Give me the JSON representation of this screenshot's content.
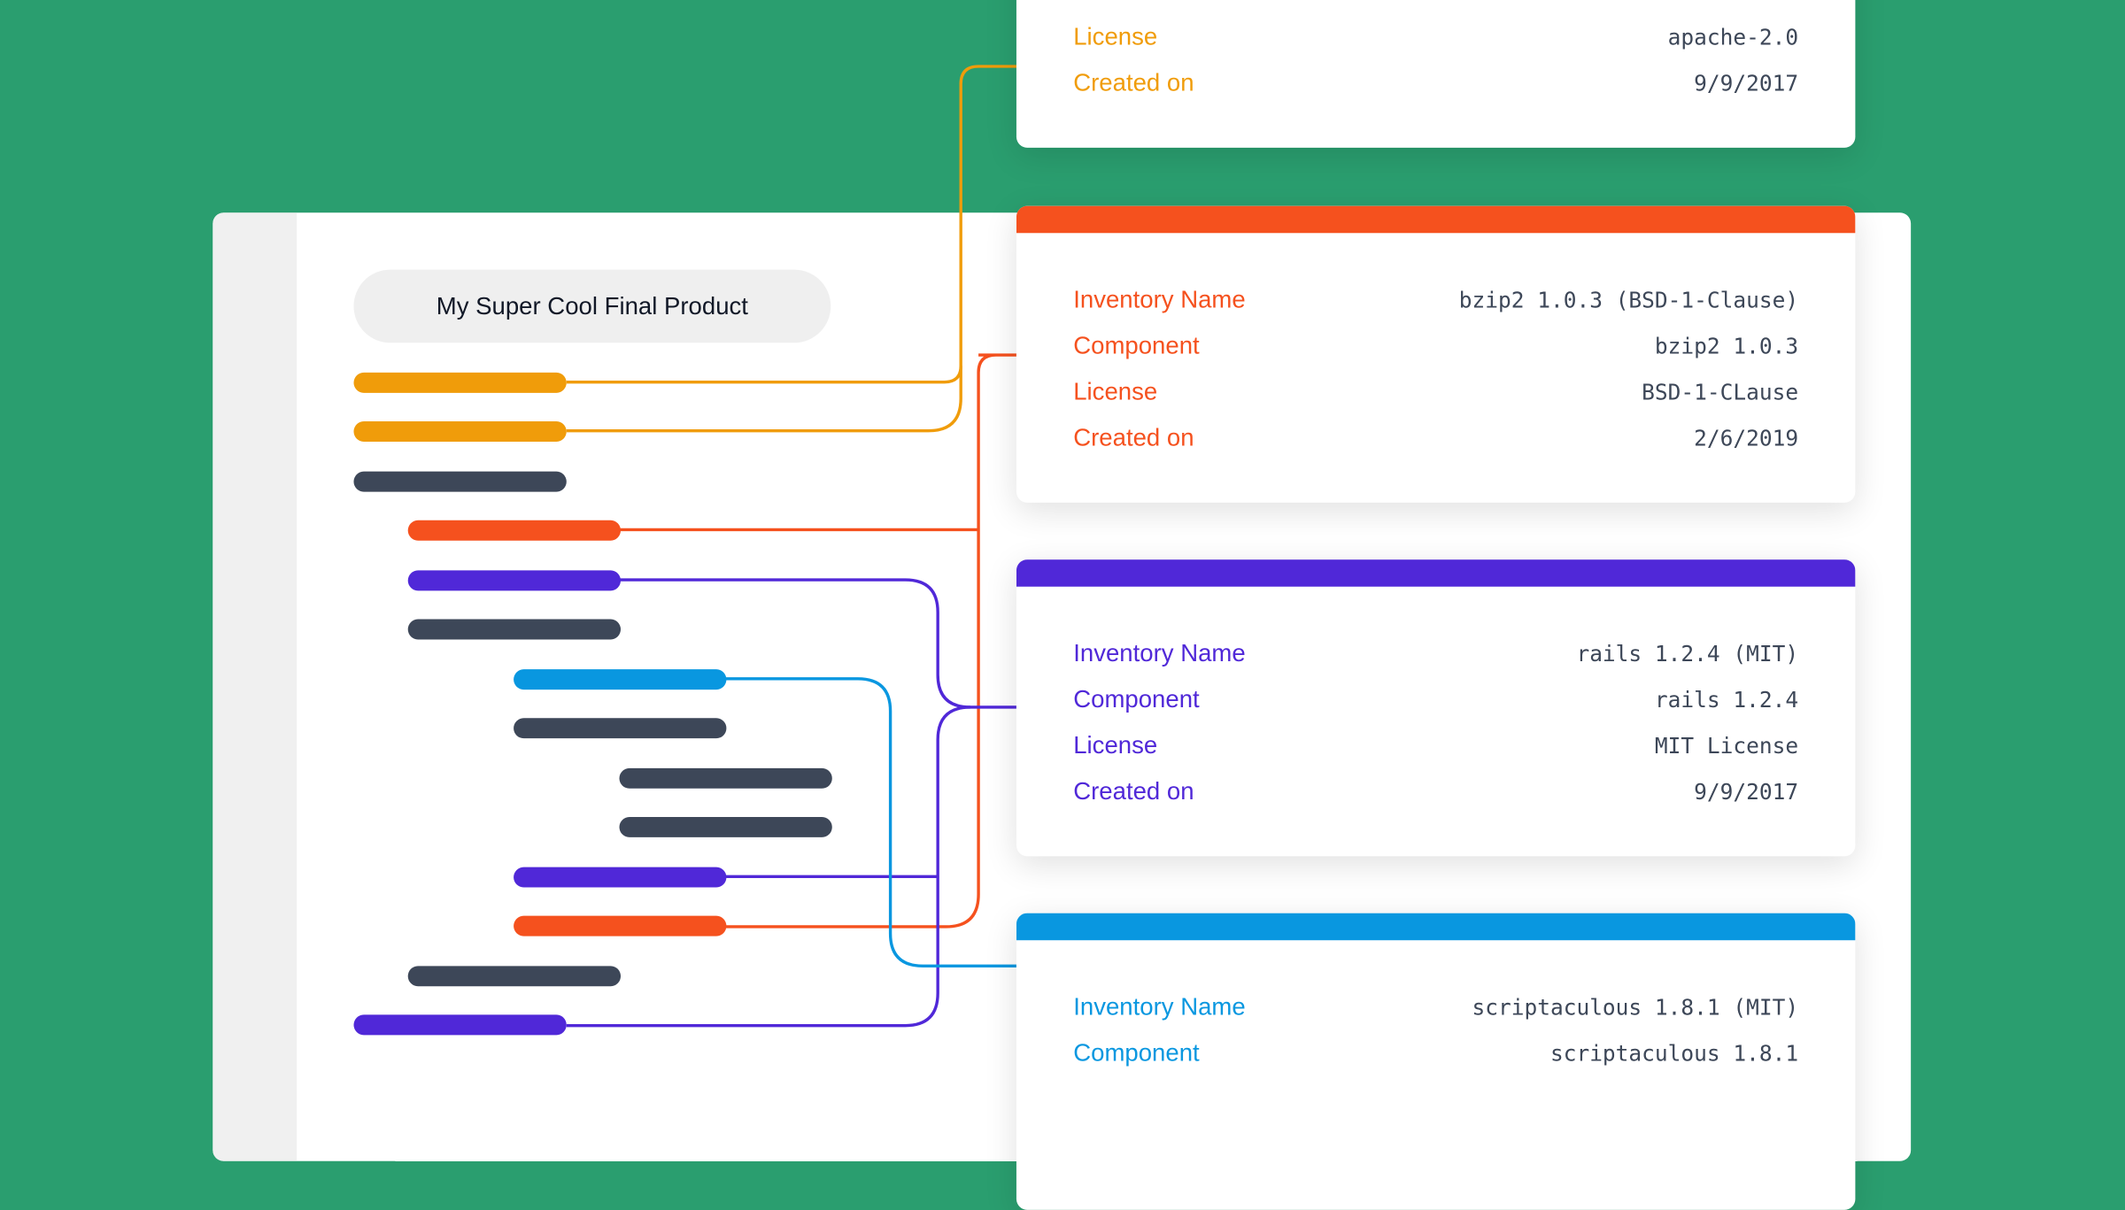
{
  "colors": {
    "background": "#2a9e6f",
    "orange": "#f09c0a",
    "red": "#f5511e",
    "purple": "#5028d8",
    "blue": "#0997e0",
    "dark": "#3d4758"
  },
  "product": {
    "title": "My Super Cool Final Product"
  },
  "tree_items": [
    {
      "color": "orange",
      "level": 0
    },
    {
      "color": "orange",
      "level": 0
    },
    {
      "color": "dark",
      "level": 0
    },
    {
      "color": "red",
      "level": 1
    },
    {
      "color": "purple",
      "level": 1
    },
    {
      "color": "dark",
      "level": 1
    },
    {
      "color": "blue",
      "level": 2
    },
    {
      "color": "dark",
      "level": 2
    },
    {
      "color": "dark",
      "level": 3
    },
    {
      "color": "dark",
      "level": 3
    },
    {
      "color": "purple",
      "level": 2
    },
    {
      "color": "red",
      "level": 2
    },
    {
      "color": "dark",
      "level": 1
    },
    {
      "color": "purple",
      "level": 0
    }
  ],
  "cards": [
    {
      "color": "orange",
      "rows": [
        {
          "label": "License",
          "value": "apache-2.0"
        },
        {
          "label": "Created on",
          "value": "9/9/2017"
        }
      ]
    },
    {
      "color": "red",
      "rows": [
        {
          "label": "Inventory Name",
          "value": "bzip2 1.0.3 (BSD-1-Clause)"
        },
        {
          "label": "Component",
          "value": "bzip2 1.0.3"
        },
        {
          "label": "License",
          "value": "BSD-1-CLause"
        },
        {
          "label": "Created on",
          "value": "2/6/2019"
        }
      ]
    },
    {
      "color": "purple",
      "rows": [
        {
          "label": "Inventory Name",
          "value": "rails 1.2.4 (MIT)"
        },
        {
          "label": "Component",
          "value": "rails 1.2.4"
        },
        {
          "label": "License",
          "value": "MIT License"
        },
        {
          "label": "Created on",
          "value": "9/9/2017"
        }
      ]
    },
    {
      "color": "blue",
      "rows": [
        {
          "label": "Inventory Name",
          "value": "scriptaculous 1.8.1 (MIT)"
        },
        {
          "label": "Component",
          "value": "scriptaculous 1.8.1"
        }
      ]
    }
  ]
}
